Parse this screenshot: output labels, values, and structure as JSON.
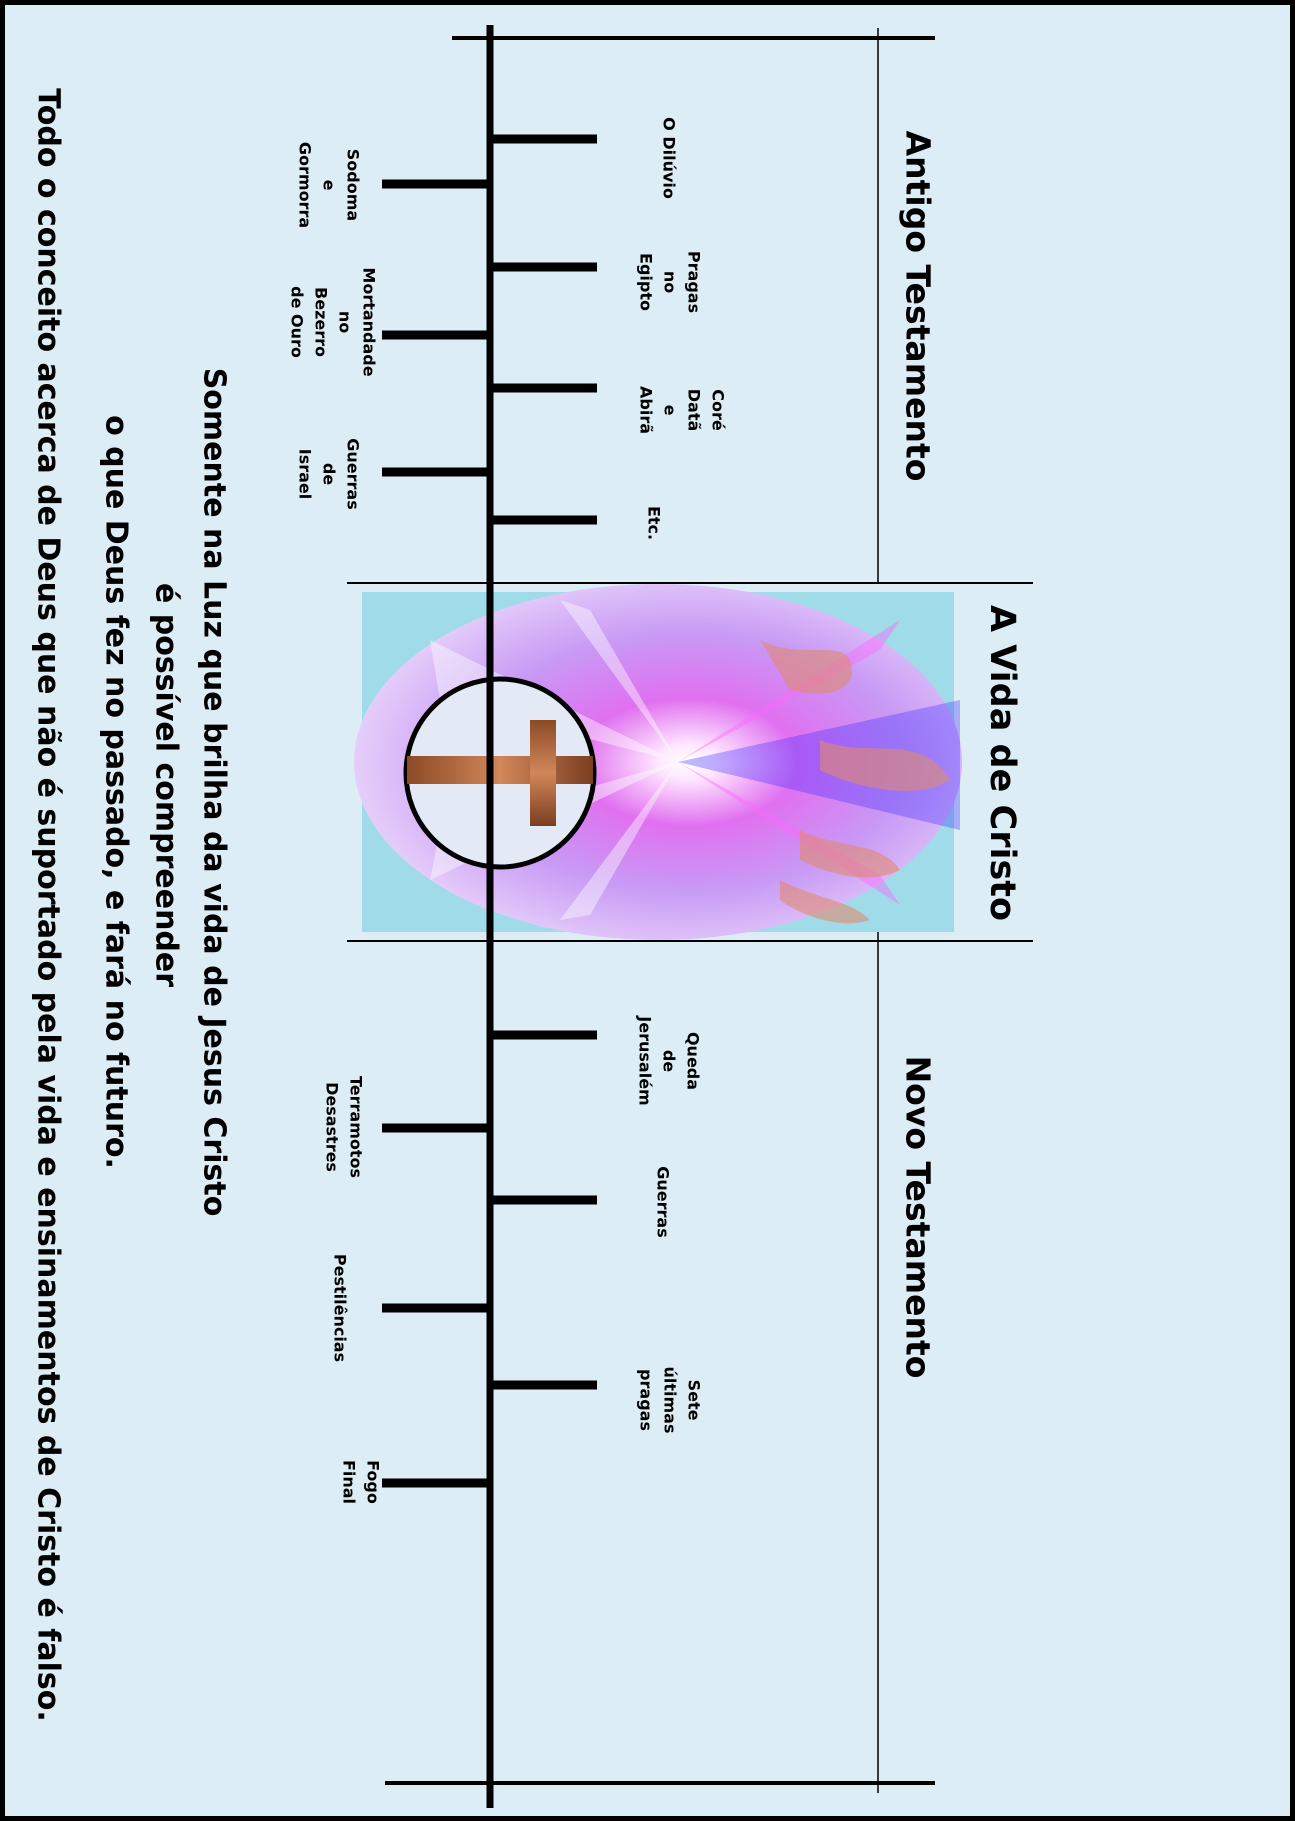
{
  "colors": {
    "background": "#dcedf6",
    "border": "#000000",
    "line": "#000000",
    "cross": "#a0522d",
    "glow_purple": "#c77dff",
    "glow_blue": "#3a2bff",
    "flame": "#e08a70",
    "teal": "#9fdbe8"
  },
  "sections": {
    "old_testament": "Antigo Testamento",
    "life_of_christ": "A Vida de Cristo",
    "new_testament": "Novo Testamento"
  },
  "events": {
    "diluvio": [
      "O Dilúvio"
    ],
    "sodoma": [
      "Sodoma",
      "e",
      "Gormorra"
    ],
    "pragas_egito": [
      "Pragas",
      "no",
      "Egipto"
    ],
    "mortandade": [
      "Mortandade",
      "no",
      "Bezerro",
      "de Ouro"
    ],
    "core": [
      "Coré",
      "Datã",
      "e",
      "Abirã"
    ],
    "guerras_israel": [
      "Guerras",
      "de",
      "Israel"
    ],
    "etc": [
      "Etc."
    ],
    "queda": [
      "Queda",
      "de",
      "Jerusalém"
    ],
    "terramotos": [
      "Terramotos",
      "Desastres"
    ],
    "guerras_nt": [
      "Guerras"
    ],
    "pestilencias": [
      "Pestilências"
    ],
    "sete_pragas": [
      "Sete",
      "últimas",
      "pragas"
    ],
    "fogo_final": [
      "Fogo",
      "Final"
    ]
  },
  "message": {
    "line1": "Somente na Luz que brilha da vida de Jesus Cristo",
    "line2": "é  possível compreender",
    "line3": "o que Deus fez no passado, e fará no futuro.",
    "line4": "Todo o conceito acerca de Deus que não é suportado pela vida e ensinamentos de Cristo é falso."
  }
}
